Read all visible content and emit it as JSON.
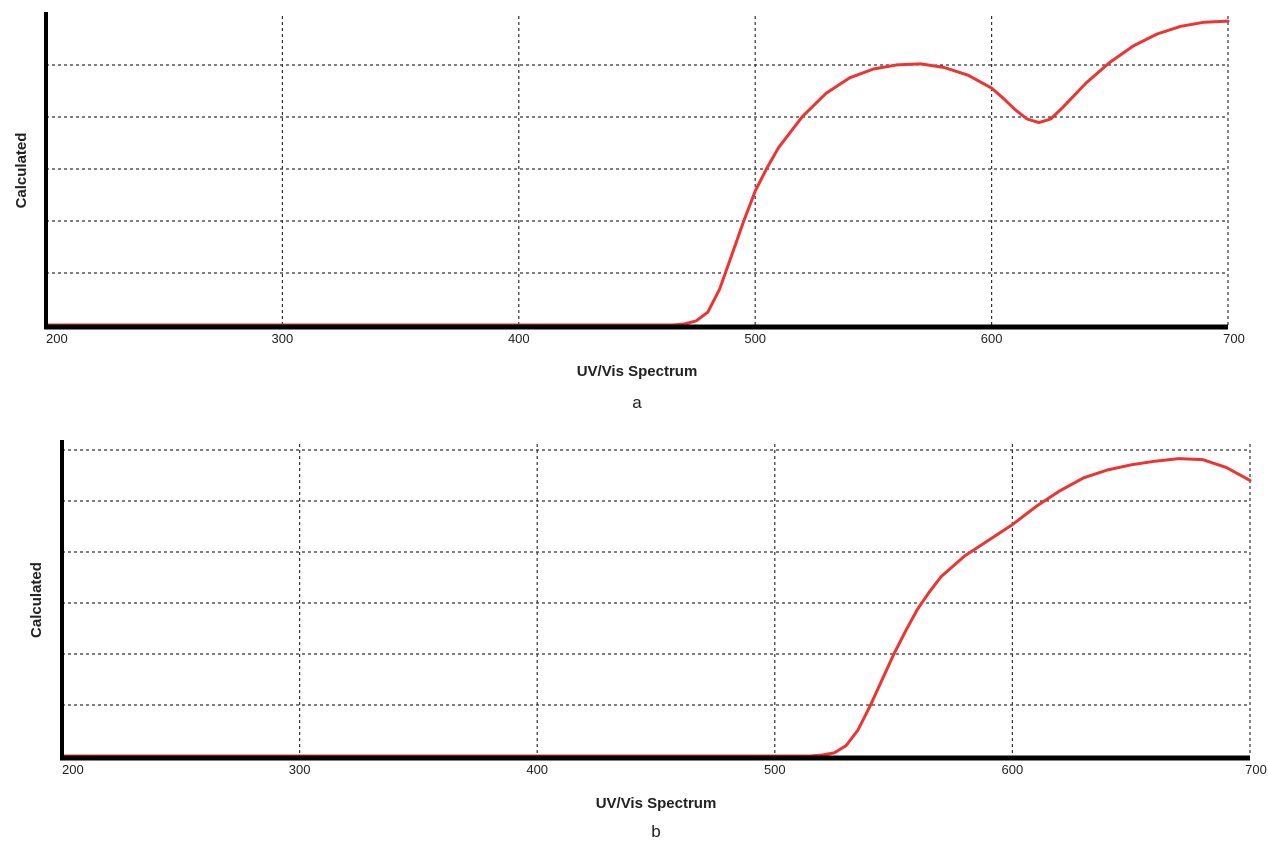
{
  "colors": {
    "series": "#ee3333",
    "axis": "#000000",
    "grid": "#333333"
  },
  "chart_data": [
    {
      "type": "line",
      "panel_label": "a",
      "xlabel": "UV/Vis Spectrum",
      "ylabel": "Calculated",
      "xlim": [
        200,
        700
      ],
      "ylim": [
        0,
        6
      ],
      "xticks": [
        200,
        300,
        400,
        500,
        600,
        700
      ],
      "ytick_labels_shown": false,
      "grid": true,
      "series": [
        {
          "x": [
            200,
            300,
            400,
            465,
            470,
            475,
            480,
            485,
            490,
            495,
            500,
            505,
            510,
            520,
            530,
            540,
            550,
            560,
            570,
            580,
            590,
            600,
            605,
            610,
            615,
            620,
            625,
            630,
            640,
            650,
            660,
            670,
            680,
            690,
            700
          ],
          "y": [
            0,
            0,
            0,
            0,
            0.02,
            0.08,
            0.25,
            0.7,
            1.35,
            2.0,
            2.6,
            3.05,
            3.45,
            4.05,
            4.5,
            4.8,
            4.97,
            5.05,
            5.07,
            5.0,
            4.85,
            4.6,
            4.4,
            4.18,
            4.0,
            3.93,
            4.0,
            4.22,
            4.7,
            5.1,
            5.42,
            5.65,
            5.8,
            5.88,
            5.9
          ]
        }
      ]
    },
    {
      "type": "line",
      "panel_label": "b",
      "xlabel": "UV/Vis Spectrum",
      "ylabel": "Calculated",
      "xlim": [
        200,
        700
      ],
      "ylim": [
        0,
        6
      ],
      "xticks": [
        200,
        300,
        400,
        500,
        600,
        700
      ],
      "ytick_labels_shown": false,
      "grid": true,
      "series": [
        {
          "x": [
            200,
            300,
            400,
            500,
            515,
            520,
            525,
            530,
            535,
            540,
            545,
            550,
            555,
            560,
            565,
            570,
            580,
            590,
            600,
            610,
            620,
            630,
            640,
            650,
            660,
            670,
            680,
            690,
            700
          ],
          "y": [
            0,
            0,
            0,
            0,
            0,
            0.02,
            0.06,
            0.2,
            0.5,
            0.95,
            1.45,
            1.95,
            2.4,
            2.82,
            3.15,
            3.45,
            3.85,
            4.15,
            4.45,
            4.8,
            5.1,
            5.35,
            5.5,
            5.6,
            5.67,
            5.72,
            5.7,
            5.55,
            5.3
          ]
        }
      ]
    }
  ]
}
